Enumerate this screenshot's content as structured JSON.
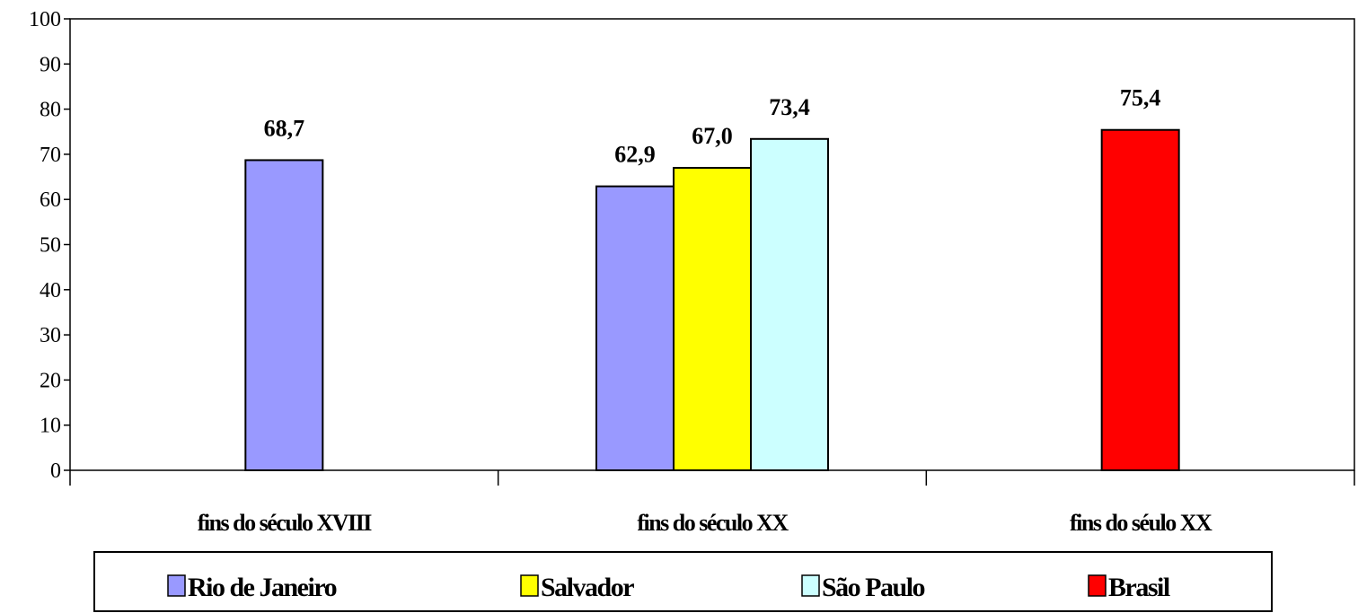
{
  "chart_data": {
    "type": "bar",
    "title": "",
    "xlabel": "",
    "ylabel": "",
    "ylim": [
      0,
      100
    ],
    "yticks": [
      0,
      10,
      20,
      30,
      40,
      50,
      60,
      70,
      80,
      90,
      100
    ],
    "grid": false,
    "legend_position": "bottom",
    "categories": [
      "fins do século XVIII",
      "fins do século XX",
      "fins do séulo XX"
    ],
    "series": [
      {
        "name": "Rio de Janeiro",
        "color": "#9999ff",
        "values": [
          68.7,
          62.9,
          null
        ]
      },
      {
        "name": "Salvador",
        "color": "#ffff00",
        "values": [
          null,
          67.0,
          null
        ]
      },
      {
        "name": "São Paulo",
        "color": "#ccffff",
        "values": [
          null,
          73.4,
          null
        ]
      },
      {
        "name": "Brasil",
        "color": "#ff0000",
        "values": [
          null,
          null,
          75.4
        ]
      }
    ],
    "data_labels": [
      {
        "category": 0,
        "series": 0,
        "text": "68,7"
      },
      {
        "category": 1,
        "series": 0,
        "text": "62,9"
      },
      {
        "category": 1,
        "series": 1,
        "text": "67,0"
      },
      {
        "category": 1,
        "series": 2,
        "text": "73,4"
      },
      {
        "category": 2,
        "series": 3,
        "text": "75,4"
      }
    ]
  }
}
